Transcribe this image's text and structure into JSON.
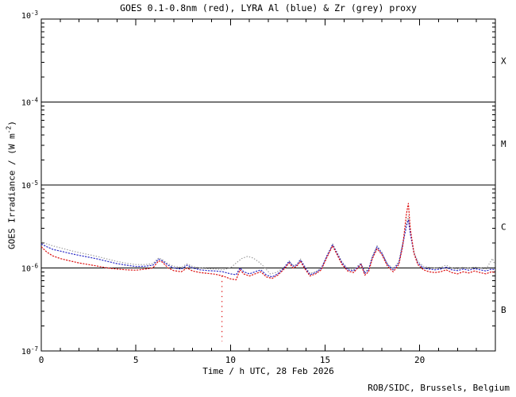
{
  "page": {
    "background": "#ffffff",
    "foreground": "#000000"
  },
  "chart_data": {
    "type": "line",
    "title": "GOES 0.1-0.8nm (red), LYRA Al (blue) & Zr (grey) proxy",
    "xlabel": "Time / h UTC, 28 Feb 2026",
    "ylabel_parts": {
      "pre": "GOES Irradiance / (W m",
      "sup": "-2",
      "post": ")"
    },
    "credit": "ROB/SIDC, Brussels, Belgium",
    "xlim": [
      0,
      24
    ],
    "x_major_ticks": [
      0,
      5,
      10,
      15,
      20
    ],
    "x_minor_step": 1,
    "y_major_exponents": [
      -3,
      -4,
      -5,
      -6,
      -7
    ],
    "ylim_exponents": [
      -7,
      -3
    ],
    "hline_exponents": [
      -4,
      -5,
      -6
    ],
    "grid": "off",
    "legend": "in-title",
    "flare_classes": [
      {
        "label": "X",
        "mid_exponent": -3.5
      },
      {
        "label": "M",
        "mid_exponent": -4.5
      },
      {
        "label": "C",
        "mid_exponent": -5.5
      },
      {
        "label": "B",
        "mid_exponent": -6.5
      }
    ],
    "value_scale": 1e-06,
    "series": [
      {
        "name": "LYRA Zr proxy",
        "color": "#9a9a9a",
        "dash": "1.4,2.0",
        "points": [
          [
            0,
            2.1
          ],
          [
            0.3,
            1.95
          ],
          [
            0.6,
            1.85
          ],
          [
            1,
            1.75
          ],
          [
            1.5,
            1.63
          ],
          [
            2,
            1.53
          ],
          [
            2.5,
            1.45
          ],
          [
            3,
            1.37
          ],
          [
            3.5,
            1.28
          ],
          [
            4,
            1.2
          ],
          [
            4.5,
            1.14
          ],
          [
            5,
            1.1
          ],
          [
            5.5,
            1.1
          ],
          [
            5.9,
            1.13
          ],
          [
            6.2,
            1.32
          ],
          [
            6.4,
            1.26
          ],
          [
            6.7,
            1.12
          ],
          [
            7,
            1.05
          ],
          [
            7.4,
            1.02
          ],
          [
            7.7,
            1.12
          ],
          [
            8,
            1.04
          ],
          [
            8.4,
            1.0
          ],
          [
            8.8,
            0.98
          ],
          [
            9.2,
            0.97
          ],
          [
            9.6,
            0.95
          ],
          [
            10,
            1.0
          ],
          [
            10.3,
            1.15
          ],
          [
            10.6,
            1.3
          ],
          [
            10.9,
            1.38
          ],
          [
            11.2,
            1.32
          ],
          [
            11.5,
            1.18
          ],
          [
            11.8,
            1.02
          ],
          [
            12.1,
            0.85
          ],
          [
            12.4,
            0.88
          ],
          [
            12.8,
            1.0
          ],
          [
            13.1,
            1.22
          ],
          [
            13.3,
            1.08
          ],
          [
            13.5,
            1.1
          ],
          [
            13.7,
            1.28
          ],
          [
            13.9,
            1.07
          ],
          [
            14.2,
            0.86
          ],
          [
            14.5,
            0.9
          ],
          [
            14.8,
            1.0
          ],
          [
            15.1,
            1.42
          ],
          [
            15.4,
            1.95
          ],
          [
            15.6,
            1.6
          ],
          [
            15.9,
            1.18
          ],
          [
            16.2,
            0.98
          ],
          [
            16.5,
            0.95
          ],
          [
            16.9,
            1.15
          ],
          [
            17.1,
            0.9
          ],
          [
            17.3,
            0.98
          ],
          [
            17.5,
            1.4
          ],
          [
            17.75,
            1.85
          ],
          [
            18,
            1.55
          ],
          [
            18.3,
            1.12
          ],
          [
            18.6,
            0.98
          ],
          [
            18.9,
            1.2
          ],
          [
            19.1,
            2.0
          ],
          [
            19.3,
            3.5
          ],
          [
            19.4,
            4.2
          ],
          [
            19.5,
            2.8
          ],
          [
            19.7,
            1.55
          ],
          [
            19.9,
            1.2
          ],
          [
            20.2,
            1.05
          ],
          [
            20.5,
            1.02
          ],
          [
            20.8,
            1.0
          ],
          [
            21.1,
            1.02
          ],
          [
            21.4,
            1.08
          ],
          [
            21.7,
            1.0
          ],
          [
            22,
            0.97
          ],
          [
            22.3,
            1.02
          ],
          [
            22.6,
            0.99
          ],
          [
            22.9,
            1.03
          ],
          [
            23.2,
            1.0
          ],
          [
            23.5,
            0.97
          ],
          [
            23.85,
            1.3
          ],
          [
            24,
            1.05
          ]
        ]
      },
      {
        "name": "LYRA Al proxy",
        "color": "#2b2bc8",
        "dash": "2.2,1.4",
        "points": [
          [
            0,
            1.95
          ],
          [
            0.3,
            1.8
          ],
          [
            0.6,
            1.68
          ],
          [
            1,
            1.6
          ],
          [
            1.5,
            1.5
          ],
          [
            2,
            1.42
          ],
          [
            2.5,
            1.35
          ],
          [
            3,
            1.28
          ],
          [
            3.5,
            1.2
          ],
          [
            4,
            1.13
          ],
          [
            4.5,
            1.08
          ],
          [
            5,
            1.04
          ],
          [
            5.5,
            1.05
          ],
          [
            5.9,
            1.08
          ],
          [
            6.2,
            1.28
          ],
          [
            6.4,
            1.22
          ],
          [
            6.7,
            1.08
          ],
          [
            7,
            1.0
          ],
          [
            7.4,
            0.97
          ],
          [
            7.7,
            1.08
          ],
          [
            8,
            1.0
          ],
          [
            8.4,
            0.95
          ],
          [
            8.8,
            0.93
          ],
          [
            9.2,
            0.92
          ],
          [
            9.6,
            0.9
          ],
          [
            10,
            0.85
          ],
          [
            10.3,
            0.83
          ],
          [
            10.5,
            1.0
          ],
          [
            10.7,
            0.9
          ],
          [
            11,
            0.85
          ],
          [
            11.3,
            0.9
          ],
          [
            11.6,
            0.95
          ],
          [
            11.9,
            0.82
          ],
          [
            12.2,
            0.78
          ],
          [
            12.5,
            0.85
          ],
          [
            12.8,
            0.98
          ],
          [
            13.1,
            1.2
          ],
          [
            13.3,
            1.05
          ],
          [
            13.5,
            1.08
          ],
          [
            13.7,
            1.25
          ],
          [
            13.9,
            1.05
          ],
          [
            14.2,
            0.83
          ],
          [
            14.5,
            0.88
          ],
          [
            14.8,
            0.98
          ],
          [
            15.1,
            1.4
          ],
          [
            15.4,
            1.9
          ],
          [
            15.6,
            1.55
          ],
          [
            15.9,
            1.15
          ],
          [
            16.2,
            0.95
          ],
          [
            16.5,
            0.92
          ],
          [
            16.9,
            1.12
          ],
          [
            17.1,
            0.86
          ],
          [
            17.3,
            0.95
          ],
          [
            17.5,
            1.35
          ],
          [
            17.75,
            1.8
          ],
          [
            18,
            1.5
          ],
          [
            18.3,
            1.1
          ],
          [
            18.6,
            0.95
          ],
          [
            18.9,
            1.15
          ],
          [
            19.1,
            1.9
          ],
          [
            19.3,
            3.2
          ],
          [
            19.4,
            3.8
          ],
          [
            19.5,
            2.6
          ],
          [
            19.7,
            1.5
          ],
          [
            19.9,
            1.15
          ],
          [
            20.2,
            1.0
          ],
          [
            20.5,
            0.97
          ],
          [
            20.8,
            0.95
          ],
          [
            21.1,
            0.97
          ],
          [
            21.4,
            1.02
          ],
          [
            21.7,
            0.95
          ],
          [
            22,
            0.93
          ],
          [
            22.3,
            0.97
          ],
          [
            22.6,
            0.94
          ],
          [
            22.9,
            0.98
          ],
          [
            23.2,
            0.95
          ],
          [
            23.5,
            0.92
          ],
          [
            23.8,
            0.97
          ],
          [
            24,
            0.95
          ]
        ]
      },
      {
        "name": "GOES 0.1-0.8nm",
        "color": "#dd1111",
        "dash": "2.2,1.4",
        "points": [
          [
            0,
            1.8
          ],
          [
            0.3,
            1.55
          ],
          [
            0.6,
            1.4
          ],
          [
            1,
            1.3
          ],
          [
            1.5,
            1.22
          ],
          [
            2,
            1.15
          ],
          [
            2.5,
            1.1
          ],
          [
            3,
            1.05
          ],
          [
            3.5,
            1.0
          ],
          [
            4,
            0.97
          ],
          [
            4.5,
            0.95
          ],
          [
            5,
            0.94
          ],
          [
            5.5,
            0.97
          ],
          [
            5.9,
            1.0
          ],
          [
            6.2,
            1.22
          ],
          [
            6.4,
            1.18
          ],
          [
            6.7,
            1.0
          ],
          [
            7,
            0.93
          ],
          [
            7.4,
            0.9
          ],
          [
            7.7,
            1.0
          ],
          [
            8,
            0.92
          ],
          [
            8.4,
            0.88
          ],
          [
            8.8,
            0.86
          ],
          [
            9.2,
            0.84
          ],
          [
            9.6,
            0.8
          ],
          [
            10,
            0.74
          ],
          [
            10.3,
            0.72
          ],
          [
            10.5,
            0.95
          ],
          [
            10.7,
            0.85
          ],
          [
            11,
            0.8
          ],
          [
            11.3,
            0.85
          ],
          [
            11.6,
            0.9
          ],
          [
            11.9,
            0.78
          ],
          [
            12.2,
            0.75
          ],
          [
            12.5,
            0.82
          ],
          [
            12.8,
            0.95
          ],
          [
            13.1,
            1.15
          ],
          [
            13.3,
            1.0
          ],
          [
            13.5,
            1.05
          ],
          [
            13.7,
            1.2
          ],
          [
            13.9,
            1.0
          ],
          [
            14.2,
            0.8
          ],
          [
            14.5,
            0.85
          ],
          [
            14.8,
            0.95
          ],
          [
            15.1,
            1.35
          ],
          [
            15.4,
            1.85
          ],
          [
            15.6,
            1.5
          ],
          [
            15.9,
            1.1
          ],
          [
            16.2,
            0.92
          ],
          [
            16.5,
            0.88
          ],
          [
            16.9,
            1.1
          ],
          [
            17.1,
            0.82
          ],
          [
            17.3,
            0.9
          ],
          [
            17.5,
            1.3
          ],
          [
            17.75,
            1.7
          ],
          [
            18,
            1.45
          ],
          [
            18.3,
            1.05
          ],
          [
            18.6,
            0.9
          ],
          [
            18.9,
            1.1
          ],
          [
            19.1,
            1.8
          ],
          [
            19.3,
            4.5
          ],
          [
            19.4,
            6.0
          ],
          [
            19.5,
            3.0
          ],
          [
            19.7,
            1.5
          ],
          [
            19.9,
            1.1
          ],
          [
            20.2,
            0.95
          ],
          [
            20.5,
            0.9
          ],
          [
            20.8,
            0.88
          ],
          [
            21.1,
            0.9
          ],
          [
            21.4,
            0.95
          ],
          [
            21.7,
            0.88
          ],
          [
            22,
            0.85
          ],
          [
            22.3,
            0.9
          ],
          [
            22.6,
            0.87
          ],
          [
            22.9,
            0.92
          ],
          [
            23.2,
            0.88
          ],
          [
            23.5,
            0.85
          ],
          [
            23.8,
            0.9
          ],
          [
            24,
            0.88
          ]
        ]
      }
    ],
    "dropout": {
      "series": "GOES 0.1-0.8nm",
      "x": 9.55,
      "from": 0.8,
      "to": 0.13,
      "color": "#dd1111"
    }
  }
}
